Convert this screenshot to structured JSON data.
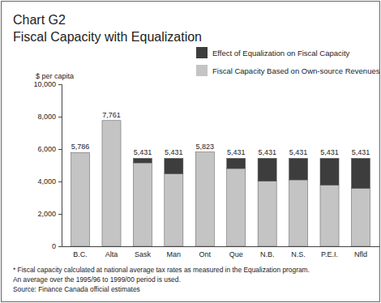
{
  "chart_data": {
    "type": "bar",
    "title": "Chart G2",
    "subtitle": "Fiscal Capacity with Equalization",
    "y_label": "$ per capita",
    "categories": [
      "B.C.",
      "Alta",
      "Sask",
      "Man",
      "Ont",
      "Que",
      "N.B.",
      "N.S.",
      "P.E.I.",
      "Nfld"
    ],
    "series": [
      {
        "name": "Fiscal Capacity Based on Own-source Revenues",
        "color": "#c4c4c4",
        "values": [
          5786,
          7761,
          5150,
          4480,
          5823,
          4800,
          4020,
          4100,
          3780,
          3580
        ]
      },
      {
        "name": "Effect of Equalization on Fiscal Capacity",
        "color": "#3d3d3d",
        "values": [
          0,
          0,
          281,
          951,
          0,
          631,
          1411,
          1331,
          1651,
          1851
        ]
      }
    ],
    "totals": [
      5786,
      7761,
      5431,
      5431,
      5823,
      5431,
      5431,
      5431,
      5431,
      5431
    ],
    "total_labels": [
      "5,786",
      "7,761",
      "5,431",
      "5,431",
      "5,823",
      "5,431",
      "5,431",
      "5,431",
      "5,431",
      "5,431"
    ],
    "stacked": true,
    "grid": false,
    "legend": "top-right",
    "ylim": [
      0,
      10000
    ],
    "yticks": [
      {
        "value": 0,
        "label": "0"
      },
      {
        "value": 2000,
        "label": "2,000"
      },
      {
        "value": 4000,
        "label": "4,000"
      },
      {
        "value": 6000,
        "label": "6,000"
      },
      {
        "value": 8000,
        "label": "8,000"
      },
      {
        "value": 10000,
        "label": "10,000"
      }
    ],
    "notes": [
      "* Fiscal capacity calculated at national average tax rates as measured in the Equalization program.",
      "An average over the 1995/96 to 1999/00 period is used.",
      "Source: Finance Canada official estimates"
    ]
  }
}
